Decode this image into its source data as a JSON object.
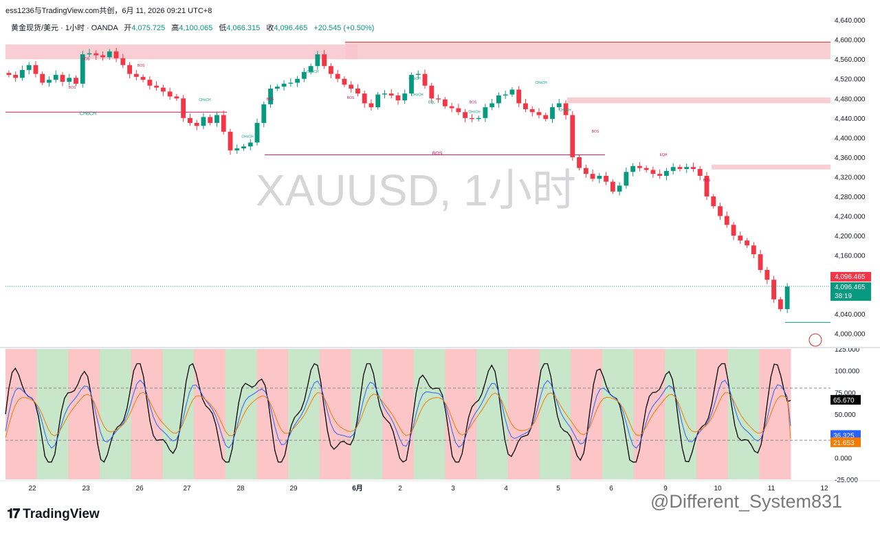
{
  "header": {
    "title_line": "ess1236与TradingView.com共创，6月 11, 2026 09:21 UTC+8",
    "symbol": "黄金现货/美元 · 1小时 · OANDA",
    "open_label": "开",
    "open": "4,075.725",
    "high_label": "高",
    "high": "4,100.065",
    "low_label": "低",
    "low": "4,066.315",
    "close_label": "收",
    "close": "4,096.465",
    "change": "+20.545 (+0.50%)"
  },
  "watermark": "XAUUSD, 1小时",
  "brand": "TradingView",
  "credit": "@Different_System831",
  "colors": {
    "up": "#089981",
    "down": "#f23645",
    "zone": "#f7c5cb",
    "bull_bg": "#c8e6c9",
    "bear_bg": "#fcc5c8",
    "fast": "#2962ff",
    "slow": "#f57c00",
    "osc": "#000000"
  },
  "chart_data": [
    {
      "type": "candlestick",
      "title": "XAUUSD, 1小时",
      "x": [
        "22",
        "23",
        "26",
        "27",
        "28",
        "29",
        "6月",
        "2",
        "3",
        "4",
        "5",
        "6",
        "9",
        "10",
        "11",
        "12"
      ],
      "ylim": [
        3980,
        4650
      ],
      "y_ticks": [
        "4,640.000",
        "4,600.000",
        "4,560.000",
        "4,520.000",
        "4,480.000",
        "4,440.000",
        "4,400.000",
        "4,360.000",
        "4,320.000",
        "4,280.000",
        "4,240.000",
        "4,200.000",
        "4,160.000",
        "4,120.000",
        "4,080.000",
        "4,040.000",
        "4,000.000"
      ],
      "price_close": [
        4528,
        4522,
        4538,
        4548,
        4530,
        4512,
        4518,
        4528,
        4514,
        4522,
        4510,
        4570,
        4572,
        4568,
        4564,
        4576,
        4562,
        4548,
        4530,
        4524,
        4518,
        4506,
        4502,
        4494,
        4484,
        4480,
        4440,
        4430,
        4424,
        4442,
        4430,
        4446,
        4412,
        4374,
        4378,
        4382,
        4390,
        4430,
        4468,
        4500,
        4504,
        4510,
        4512,
        4520,
        4534,
        4546,
        4570,
        4546,
        4530,
        4520,
        4508,
        4500,
        4490,
        4470,
        4462,
        4488,
        4490,
        4486,
        4476,
        4490,
        4528,
        4530,
        4506,
        4480,
        4478,
        4464,
        4460,
        4452,
        4440,
        4438,
        4440,
        4462,
        4470,
        4486,
        4488,
        4498,
        4470,
        4458,
        4452,
        4446,
        4438,
        4462,
        4470,
        4446,
        4360,
        4338,
        4326,
        4316,
        4322,
        4310,
        4290,
        4302,
        4330,
        4342,
        4338,
        4334,
        4326,
        4322,
        4332,
        4340,
        4336,
        4340,
        4336,
        4322,
        4280,
        4260,
        4240,
        4222,
        4200,
        4190,
        4180,
        4162,
        4130,
        4110,
        4070,
        4050,
        4096
      ],
      "last_price": "4,096.465",
      "countdown": "38:19",
      "zones": [
        {
          "label": "",
          "from": 4560,
          "to": 4590
        },
        {
          "label": "",
          "from": 4560,
          "to": 4595
        },
        {
          "label": "",
          "from": 4470,
          "to": 4482
        },
        {
          "label": "",
          "from": 4335,
          "to": 4345
        }
      ],
      "annotations": [
        "BOS",
        "CHoCH",
        "BOS",
        "BOS",
        "CHoCH",
        "CHoCH",
        "BOS",
        "CHoCH",
        "BOS",
        "BOS",
        "CHoCH",
        "CHoCH",
        "EQL",
        "CHoCH",
        "CHoCH",
        "CHoCH",
        "BOS",
        "BOS",
        "EQH",
        "BOS"
      ]
    },
    {
      "type": "line",
      "title": "",
      "ylim": [
        -25,
        125
      ],
      "y_ticks": [
        "125.000",
        "100.000",
        "75.000",
        "50.000",
        "25.000",
        "0.000",
        "-25.000"
      ],
      "levels": [
        80,
        20
      ],
      "series": [
        {
          "name": "",
          "value": "65.670",
          "color": "#000000"
        },
        {
          "name": "",
          "value": "36.325",
          "color": "#2962ff"
        },
        {
          "name": "",
          "value": "21.653",
          "color": "#f57c00"
        }
      ],
      "regimes": [
        "bear",
        "bull",
        "bear",
        "bull",
        "bear",
        "bull",
        "bear",
        "bull",
        "bear",
        "bull",
        "bear",
        "bull",
        "bear",
        "bull",
        "bear",
        "bull",
        "bear",
        "bull",
        "bear",
        "bull",
        "bear",
        "bull",
        "bear",
        "bull",
        "bear"
      ]
    }
  ]
}
